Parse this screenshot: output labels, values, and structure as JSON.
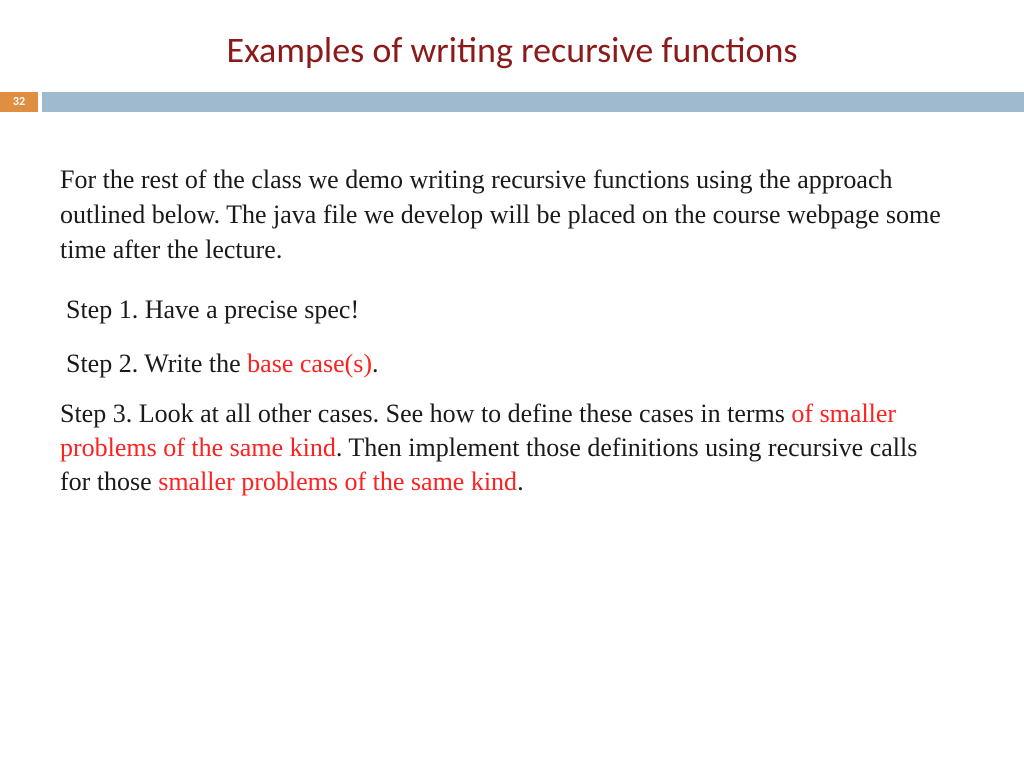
{
  "colors": {
    "title": "#8b1a1a",
    "slide_num_bg": "#e08e3f",
    "bar_bg": "#9fb9cf",
    "body_text": "#1a1a1a",
    "highlight": "#ff2020"
  },
  "title": "Examples of writing recursive functions",
  "slide_number": "32",
  "intro": "For the rest of the class we demo writing recursive functions using the approach outlined below. The java file we develop will be placed on the course webpage some time after the lecture.",
  "step1": "Step 1. Have a precise spec!",
  "step2_pre": "Step 2. Write the ",
  "step2_hl": "base case(s)",
  "step2_post": ".",
  "step3_a": "Step 3. Look at all other cases. See how to define these cases in terms ",
  "step3_b": "of smaller problems of the same kind",
  "step3_c": ". Then implement those definitions using recursive calls for those ",
  "step3_d": "smaller problems of the same kind",
  "step3_e": "."
}
